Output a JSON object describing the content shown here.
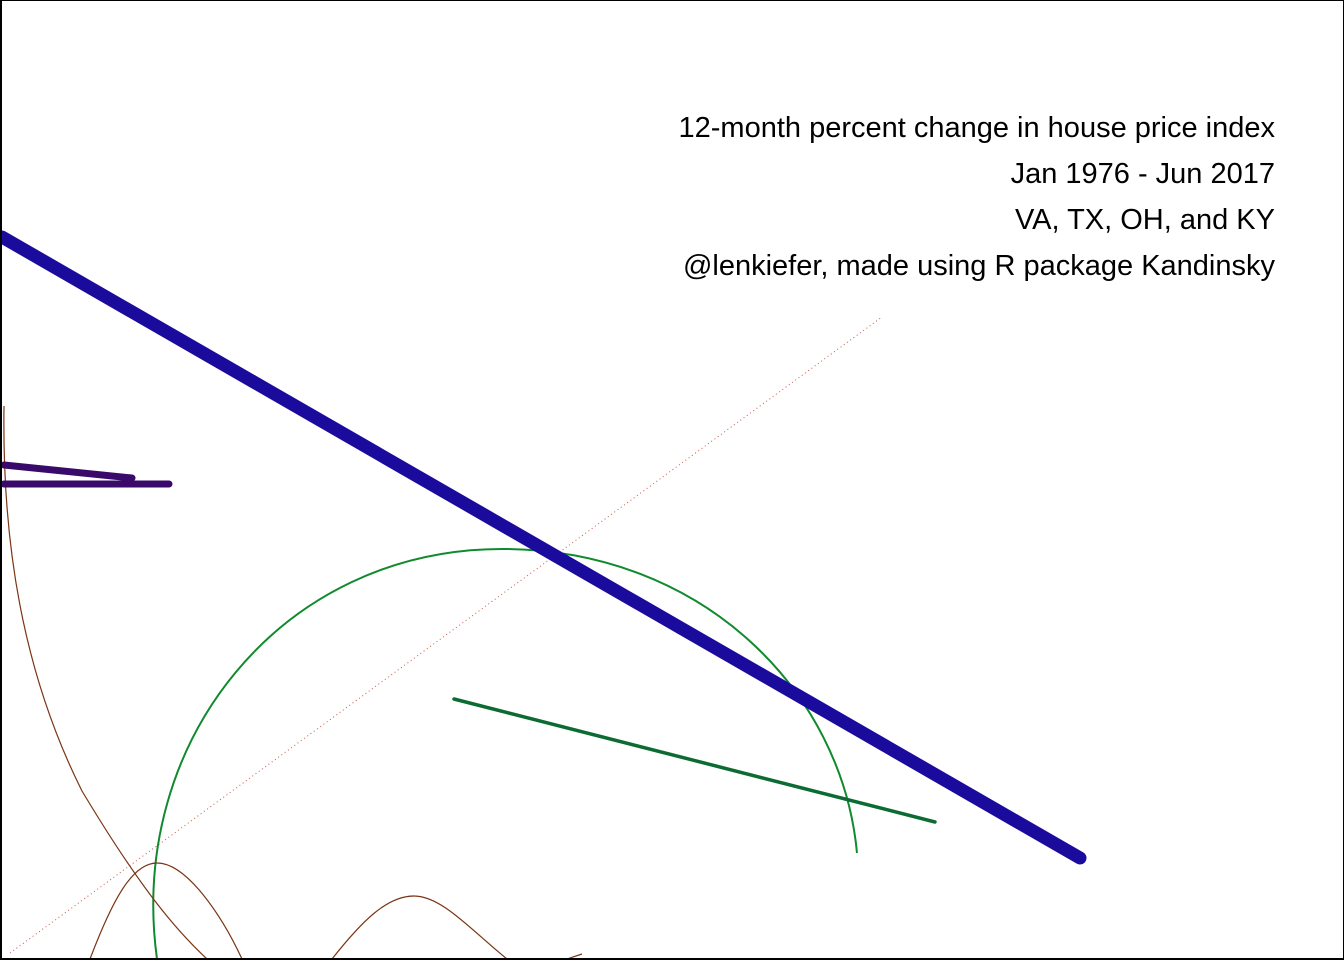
{
  "caption": {
    "title": "12-month percent change in house price index",
    "date_range": "Jan 1976 - Jun 2017",
    "states": "VA, TX, OH, and KY",
    "credit": "@lenkiefer, made using R package Kandinsky"
  },
  "colors": {
    "background": "#ffffff",
    "border": "#000000",
    "text": "#000000",
    "thick_line": "#1a0b9c",
    "purple_lines": "#3a0a6a",
    "green": "#118a2e",
    "dark_green": "#0b6b32",
    "brown": "#7a3515",
    "dotted_red": "#c0392b"
  }
}
